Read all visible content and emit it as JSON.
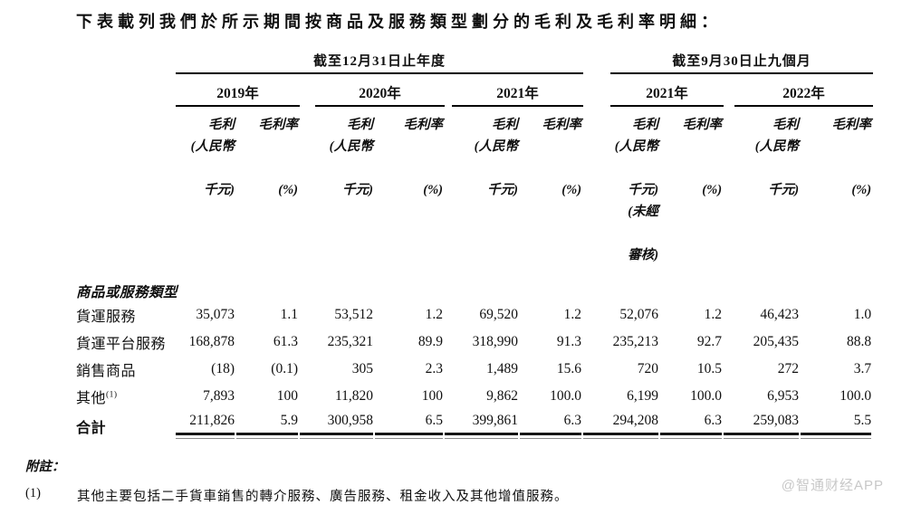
{
  "title": "下表載列我們於所示期間按商品及服務類型劃分的毛利及毛利率明細：",
  "table": {
    "period_groups": [
      {
        "label": "截至12月31日止年度"
      },
      {
        "label": "截至9月30日止九個月"
      }
    ],
    "year_headers": [
      "2019年",
      "2020年",
      "2021年",
      "2021年",
      "2022年"
    ],
    "column_subheaders": [
      {
        "lines": [
          "毛利",
          "(人民幣",
          "",
          "千元)"
        ]
      },
      {
        "lines": [
          "毛利率",
          "",
          "",
          "(%)"
        ]
      },
      {
        "lines": [
          "毛利",
          "(人民幣",
          "",
          "千元)"
        ]
      },
      {
        "lines": [
          "毛利率",
          "",
          "",
          "(%)"
        ]
      },
      {
        "lines": [
          "毛利",
          "(人民幣",
          "",
          "千元)"
        ]
      },
      {
        "lines": [
          "毛利率",
          "",
          "",
          "(%)"
        ]
      },
      {
        "lines": [
          "毛利",
          "(人民幣",
          "",
          "千元)",
          "(未經",
          "",
          "審核)"
        ]
      },
      {
        "lines": [
          "毛利率",
          "",
          "",
          "(%)"
        ]
      },
      {
        "lines": [
          "毛利",
          "(人民幣",
          "",
          "千元)"
        ]
      },
      {
        "lines": [
          "毛利率",
          "",
          "",
          "(%)"
        ]
      }
    ],
    "section_header": "商品或服務類型",
    "rows": [
      {
        "label": "貨運服務",
        "sup": "",
        "bold": false,
        "total": false,
        "values": [
          "35,073",
          "1.1",
          "53,512",
          "1.2",
          "69,520",
          "1.2",
          "52,076",
          "1.2",
          "46,423",
          "1.0"
        ]
      },
      {
        "label": "貨運平台服務",
        "sup": "",
        "bold": false,
        "total": false,
        "values": [
          "168,878",
          "61.3",
          "235,321",
          "89.9",
          "318,990",
          "91.3",
          "235,213",
          "92.7",
          "205,435",
          "88.8"
        ]
      },
      {
        "label": "銷售商品",
        "sup": "",
        "bold": false,
        "total": false,
        "values": [
          "(18)",
          "(0.1)",
          "305",
          "2.3",
          "1,489",
          "15.6",
          "720",
          "10.5",
          "272",
          "3.7"
        ]
      },
      {
        "label": "其他",
        "sup": "(1)",
        "bold": false,
        "total": false,
        "values": [
          "7,893",
          "100",
          "11,820",
          "100",
          "9,862",
          "100.0",
          "6,199",
          "100.0",
          "6,953",
          "100.0"
        ]
      },
      {
        "label": "合計",
        "sup": "",
        "bold": true,
        "total": true,
        "values": [
          "211,826",
          "5.9",
          "300,958",
          "6.5",
          "399,861",
          "6.3",
          "294,208",
          "6.3",
          "259,083",
          "5.5"
        ]
      }
    ]
  },
  "footnotes": {
    "heading": "附註：",
    "items": [
      {
        "marker": "(1)",
        "text": "其他主要包括二手貨車銷售的轉介服務、廣告服務、租金收入及其他增值服務。"
      }
    ]
  },
  "watermark": "@智通财经APP",
  "colors": {
    "rule": "#000000",
    "total_rule_top": "#151515",
    "total_rule_bottom": "#8a8a8a",
    "watermark": "#c8c8c8"
  }
}
